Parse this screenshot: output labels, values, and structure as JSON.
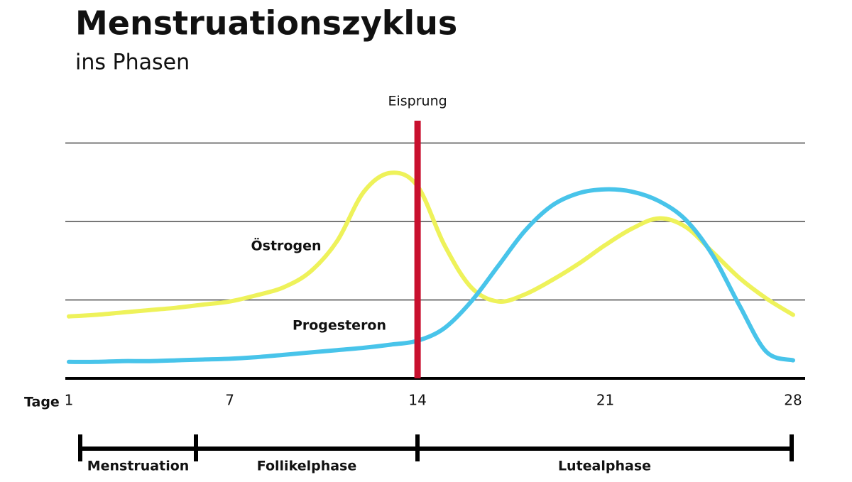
{
  "chart_data": {
    "type": "line",
    "title": "Menstruationszyklus",
    "subtitle": "ins Phasen",
    "x_label": "Tage",
    "x": [
      1,
      2,
      3,
      4,
      5,
      6,
      7,
      8,
      9,
      10,
      11,
      12,
      13,
      14,
      15,
      16,
      17,
      18,
      19,
      20,
      21,
      22,
      23,
      24,
      25,
      26,
      27,
      28
    ],
    "xlim": [
      1,
      28
    ],
    "xticks": [
      1,
      7,
      14,
      21,
      28
    ],
    "ylim": [
      0,
      3.3
    ],
    "ygrid": [
      1,
      2,
      3
    ],
    "series": [
      {
        "name": "Östrogen",
        "color": "#eef25a",
        "values": [
          0.79,
          0.81,
          0.84,
          0.87,
          0.9,
          0.94,
          0.98,
          1.06,
          1.16,
          1.36,
          1.75,
          2.38,
          2.62,
          2.45,
          1.7,
          1.16,
          0.98,
          1.07,
          1.25,
          1.46,
          1.7,
          1.91,
          2.04,
          1.93,
          1.61,
          1.28,
          1.02,
          0.81
        ]
      },
      {
        "name": "Progesteron",
        "color": "#48c4ea",
        "values": [
          0.21,
          0.21,
          0.22,
          0.22,
          0.23,
          0.24,
          0.25,
          0.27,
          0.3,
          0.33,
          0.36,
          0.39,
          0.43,
          0.48,
          0.64,
          0.98,
          1.43,
          1.88,
          2.2,
          2.36,
          2.41,
          2.38,
          2.26,
          2.02,
          1.57,
          0.93,
          0.34,
          0.23
        ]
      }
    ],
    "ovulation": {
      "label": "Eisprung",
      "day": 14,
      "color": "#c8102e"
    },
    "phases": [
      "Menstruation",
      "Follikelphase",
      "Lutealphase"
    ]
  }
}
